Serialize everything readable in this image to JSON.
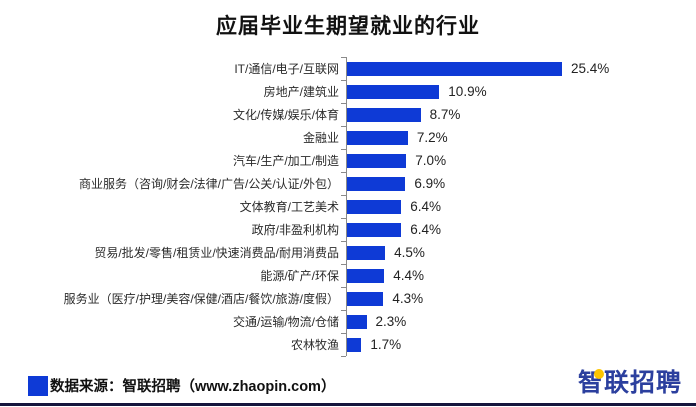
{
  "title": "应届毕业生期望就业的行业",
  "chart_data": {
    "type": "bar",
    "orientation": "horizontal",
    "title": "应届毕业生期望就业的行业",
    "categories": [
      "IT/通信/电子/互联网",
      "房地产/建筑业",
      "文化/传媒/娱乐/体育",
      "金融业",
      "汽车/生产/加工/制造",
      "商业服务（咨询/财会/法律/广告/公关/认证/外包）",
      "文体教育/工艺美术",
      "政府/非盈利机构",
      "贸易/批发/零售/租赁业/快速消费品/耐用消费品",
      "能源/矿产/环保",
      "服务业（医疗/护理/美容/保健/酒店/餐饮/旅游/度假）",
      "交通/运输/物流/仓储",
      "农林牧渔"
    ],
    "values": [
      25.4,
      10.9,
      8.7,
      7.2,
      7.0,
      6.9,
      6.4,
      6.4,
      4.5,
      4.4,
      4.3,
      2.3,
      1.7
    ],
    "value_labels": [
      "25.4%",
      "10.9%",
      "8.7%",
      "7.2%",
      "7.0%",
      "6.9%",
      "6.4%",
      "6.4%",
      "4.5%",
      "4.4%",
      "4.3%",
      "2.3%",
      "1.7%"
    ],
    "bar_color": "#0e3ad6",
    "xlim": [
      0,
      27
    ],
    "grid": false,
    "legend": "none",
    "data_labels": "outside-end"
  },
  "footer": {
    "source_text": "数据来源：智联招聘（www.zhaopin.com）",
    "marker_color": "#0e3ad6"
  },
  "logo": {
    "text": "智联招聘",
    "color": "#2b3f9e",
    "accent_color": "#fcc500"
  }
}
